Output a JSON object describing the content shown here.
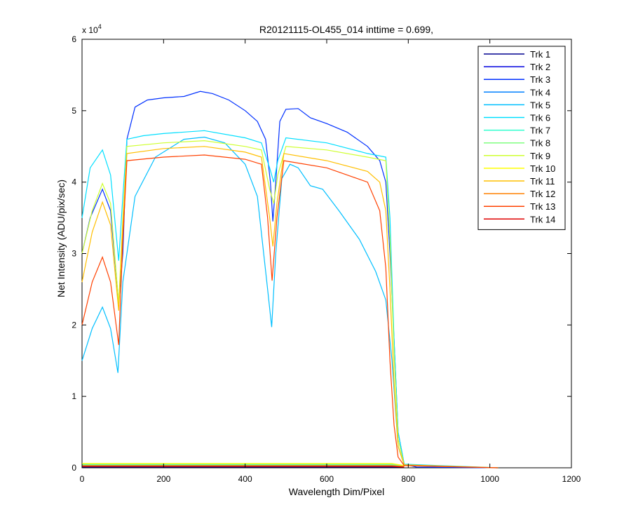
{
  "chart_data": {
    "type": "line",
    "title": "R20121115-OL455_014 inttime = 0.699,",
    "xlabel": "Wavelength Dim/Pixel",
    "ylabel": "Net Intensity (ADU/pix/sec)",
    "y_exponent_label": "x 10",
    "y_exponent_power": "4",
    "xlim": [
      0,
      1200
    ],
    "ylim": [
      0,
      6
    ],
    "y_scale_factor": 10000,
    "xticks": [
      0,
      200,
      400,
      600,
      800,
      1000,
      1200
    ],
    "yticks": [
      0,
      1,
      2,
      3,
      4,
      5,
      6
    ],
    "grid": false,
    "legend_position": "top-right",
    "series": [
      {
        "name": "Trk 1",
        "color": "#00008f",
        "points": [
          [
            0,
            0.01
          ],
          [
            760,
            0.01
          ],
          [
            790,
            0.01
          ]
        ]
      },
      {
        "name": "Trk 2",
        "color": "#0000df",
        "points": [
          [
            0,
            0.02
          ],
          [
            760,
            0.02
          ],
          [
            790,
            0.02
          ]
        ]
      },
      {
        "name": "Trk 3",
        "color": "#0030ff",
        "points": [
          [
            0,
            3.0
          ],
          [
            20,
            3.5
          ],
          [
            50,
            3.9
          ],
          [
            70,
            3.6
          ],
          [
            90,
            2.3
          ],
          [
            100,
            3.0
          ],
          [
            110,
            4.6
          ],
          [
            130,
            5.05
          ],
          [
            160,
            5.15
          ],
          [
            200,
            5.18
          ],
          [
            250,
            5.2
          ],
          [
            290,
            5.27
          ],
          [
            320,
            5.24
          ],
          [
            360,
            5.15
          ],
          [
            400,
            5.0
          ],
          [
            430,
            4.85
          ],
          [
            450,
            4.6
          ],
          [
            462,
            4.0
          ],
          [
            468,
            3.45
          ],
          [
            475,
            4.0
          ],
          [
            485,
            4.85
          ],
          [
            500,
            5.02
          ],
          [
            530,
            5.03
          ],
          [
            560,
            4.9
          ],
          [
            600,
            4.82
          ],
          [
            650,
            4.7
          ],
          [
            700,
            4.5
          ],
          [
            730,
            4.3
          ],
          [
            745,
            4.0
          ],
          [
            755,
            3.0
          ],
          [
            765,
            1.8
          ],
          [
            775,
            0.5
          ],
          [
            790,
            0.05
          ],
          [
            820,
            0.01
          ],
          [
            1020,
            0.0
          ]
        ]
      },
      {
        "name": "Trk 4",
        "color": "#0080ff",
        "points": [
          [
            0,
            0.03
          ],
          [
            760,
            0.03
          ],
          [
            790,
            0.02
          ]
        ]
      },
      {
        "name": "Trk 5",
        "color": "#00bfff",
        "points": [
          [
            0,
            1.5
          ],
          [
            25,
            1.95
          ],
          [
            50,
            2.25
          ],
          [
            70,
            1.95
          ],
          [
            88,
            1.33
          ],
          [
            100,
            2.6
          ],
          [
            130,
            3.8
          ],
          [
            180,
            4.35
          ],
          [
            250,
            4.6
          ],
          [
            300,
            4.63
          ],
          [
            350,
            4.55
          ],
          [
            400,
            4.25
          ],
          [
            430,
            3.8
          ],
          [
            455,
            2.5
          ],
          [
            465,
            1.97
          ],
          [
            475,
            3.0
          ],
          [
            490,
            4.05
          ],
          [
            510,
            4.25
          ],
          [
            530,
            4.2
          ],
          [
            560,
            3.95
          ],
          [
            590,
            3.9
          ],
          [
            630,
            3.6
          ],
          [
            680,
            3.2
          ],
          [
            720,
            2.75
          ],
          [
            745,
            2.35
          ],
          [
            760,
            1.5
          ],
          [
            775,
            0.3
          ],
          [
            790,
            0.04
          ],
          [
            1020,
            0.0
          ]
        ]
      },
      {
        "name": "Trk 6",
        "color": "#00dfff",
        "points": [
          [
            0,
            3.5
          ],
          [
            20,
            4.2
          ],
          [
            50,
            4.45
          ],
          [
            70,
            4.1
          ],
          [
            90,
            2.9
          ],
          [
            100,
            3.8
          ],
          [
            110,
            4.6
          ],
          [
            150,
            4.65
          ],
          [
            200,
            4.68
          ],
          [
            300,
            4.72
          ],
          [
            400,
            4.62
          ],
          [
            440,
            4.55
          ],
          [
            460,
            4.2
          ],
          [
            470,
            4.0
          ],
          [
            480,
            4.3
          ],
          [
            500,
            4.62
          ],
          [
            600,
            4.55
          ],
          [
            700,
            4.4
          ],
          [
            745,
            4.35
          ],
          [
            755,
            3.5
          ],
          [
            765,
            1.8
          ],
          [
            775,
            0.5
          ],
          [
            790,
            0.05
          ],
          [
            1020,
            0.0
          ]
        ]
      },
      {
        "name": "Trk 7",
        "color": "#30ffcf",
        "points": [
          [
            0,
            0.04
          ],
          [
            760,
            0.04
          ],
          [
            790,
            0.03
          ]
        ]
      },
      {
        "name": "Trk 8",
        "color": "#80ff80",
        "points": [
          [
            0,
            0.05
          ],
          [
            760,
            0.05
          ],
          [
            790,
            0.03
          ]
        ]
      },
      {
        "name": "Trk 9",
        "color": "#cfff30",
        "points": [
          [
            0,
            3.0
          ],
          [
            25,
            3.6
          ],
          [
            50,
            3.98
          ],
          [
            70,
            3.7
          ],
          [
            90,
            2.3
          ],
          [
            100,
            3.5
          ],
          [
            110,
            4.5
          ],
          [
            200,
            4.55
          ],
          [
            300,
            4.58
          ],
          [
            400,
            4.5
          ],
          [
            440,
            4.45
          ],
          [
            460,
            3.9
          ],
          [
            470,
            3.7
          ],
          [
            480,
            4.1
          ],
          [
            500,
            4.5
          ],
          [
            600,
            4.45
          ],
          [
            700,
            4.35
          ],
          [
            745,
            4.3
          ],
          [
            755,
            3.2
          ],
          [
            765,
            1.6
          ],
          [
            775,
            0.4
          ],
          [
            790,
            0.04
          ],
          [
            1020,
            0.0
          ]
        ]
      },
      {
        "name": "Trk 10",
        "color": "#ffff00",
        "points": [
          [
            0,
            0.06
          ],
          [
            760,
            0.06
          ],
          [
            790,
            0.03
          ]
        ]
      },
      {
        "name": "Trk 11",
        "color": "#ffbf00",
        "points": [
          [
            0,
            2.6
          ],
          [
            25,
            3.3
          ],
          [
            50,
            3.72
          ],
          [
            70,
            3.4
          ],
          [
            90,
            2.2
          ],
          [
            100,
            3.4
          ],
          [
            110,
            4.4
          ],
          [
            200,
            4.47
          ],
          [
            300,
            4.5
          ],
          [
            400,
            4.42
          ],
          [
            440,
            4.35
          ],
          [
            460,
            3.5
          ],
          [
            468,
            3.1
          ],
          [
            478,
            3.7
          ],
          [
            495,
            4.4
          ],
          [
            600,
            4.3
          ],
          [
            700,
            4.15
          ],
          [
            730,
            4.0
          ],
          [
            745,
            3.6
          ],
          [
            755,
            2.5
          ],
          [
            765,
            1.2
          ],
          [
            775,
            0.3
          ],
          [
            790,
            0.04
          ],
          [
            1020,
            0.0
          ]
        ]
      },
      {
        "name": "Trk 12",
        "color": "#ff8000",
        "points": [
          [
            0,
            0.03
          ],
          [
            760,
            0.03
          ],
          [
            790,
            0.02
          ]
        ]
      },
      {
        "name": "Trk 13",
        "color": "#ff4000",
        "points": [
          [
            0,
            2.0
          ],
          [
            25,
            2.6
          ],
          [
            50,
            2.95
          ],
          [
            70,
            2.6
          ],
          [
            90,
            1.72
          ],
          [
            100,
            3.2
          ],
          [
            110,
            4.3
          ],
          [
            200,
            4.35
          ],
          [
            300,
            4.38
          ],
          [
            400,
            4.32
          ],
          [
            440,
            4.25
          ],
          [
            455,
            3.5
          ],
          [
            466,
            2.62
          ],
          [
            478,
            3.5
          ],
          [
            495,
            4.3
          ],
          [
            600,
            4.2
          ],
          [
            700,
            4.0
          ],
          [
            730,
            3.6
          ],
          [
            745,
            2.8
          ],
          [
            755,
            1.5
          ],
          [
            765,
            0.6
          ],
          [
            775,
            0.15
          ],
          [
            790,
            0.03
          ],
          [
            1020,
            0.0
          ]
        ]
      },
      {
        "name": "Trk 14",
        "color": "#df0000",
        "points": [
          [
            0,
            0.02
          ],
          [
            760,
            0.02
          ],
          [
            790,
            0.01
          ]
        ]
      }
    ]
  }
}
